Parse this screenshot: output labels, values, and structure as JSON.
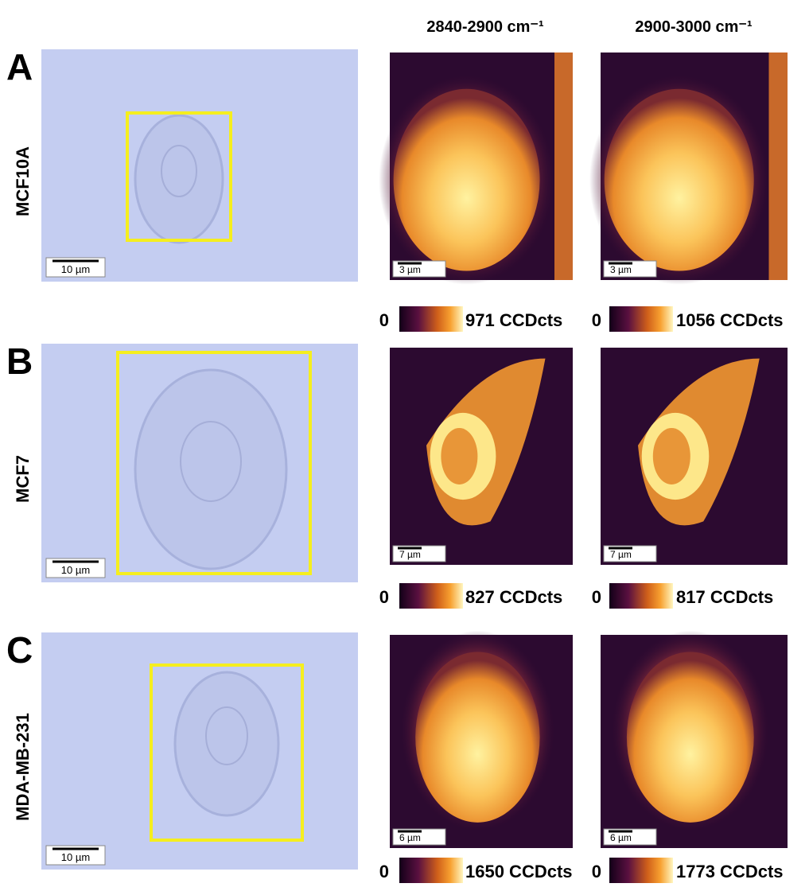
{
  "header": {
    "columns": [
      "2840-2900 cm⁻¹",
      "2900-3000 cm⁻¹"
    ]
  },
  "rows": [
    {
      "letter": "A",
      "cell_line": "MCF10A",
      "brightfield_scale": "10 µm",
      "maps": [
        {
          "scale": "3 µm",
          "cbar_min": "0",
          "cbar_max": "971 CCDcts"
        },
        {
          "scale": "3 µm",
          "cbar_min": "0",
          "cbar_max": "1056 CCDcts"
        }
      ]
    },
    {
      "letter": "B",
      "cell_line": "MCF7",
      "brightfield_scale": "10 µm",
      "maps": [
        {
          "scale": "7 µm",
          "cbar_min": "0",
          "cbar_max": "827 CCDcts"
        },
        {
          "scale": "7 µm",
          "cbar_min": "0",
          "cbar_max": "817 CCDcts"
        }
      ]
    },
    {
      "letter": "C",
      "cell_line": "MDA-MB-231",
      "brightfield_scale": "10 µm",
      "maps": [
        {
          "scale": "6 µm",
          "cbar_min": "0",
          "cbar_max": "1650 CCDcts"
        },
        {
          "scale": "6 µm",
          "cbar_min": "0",
          "cbar_max": "1773 CCDcts"
        }
      ]
    }
  ]
}
